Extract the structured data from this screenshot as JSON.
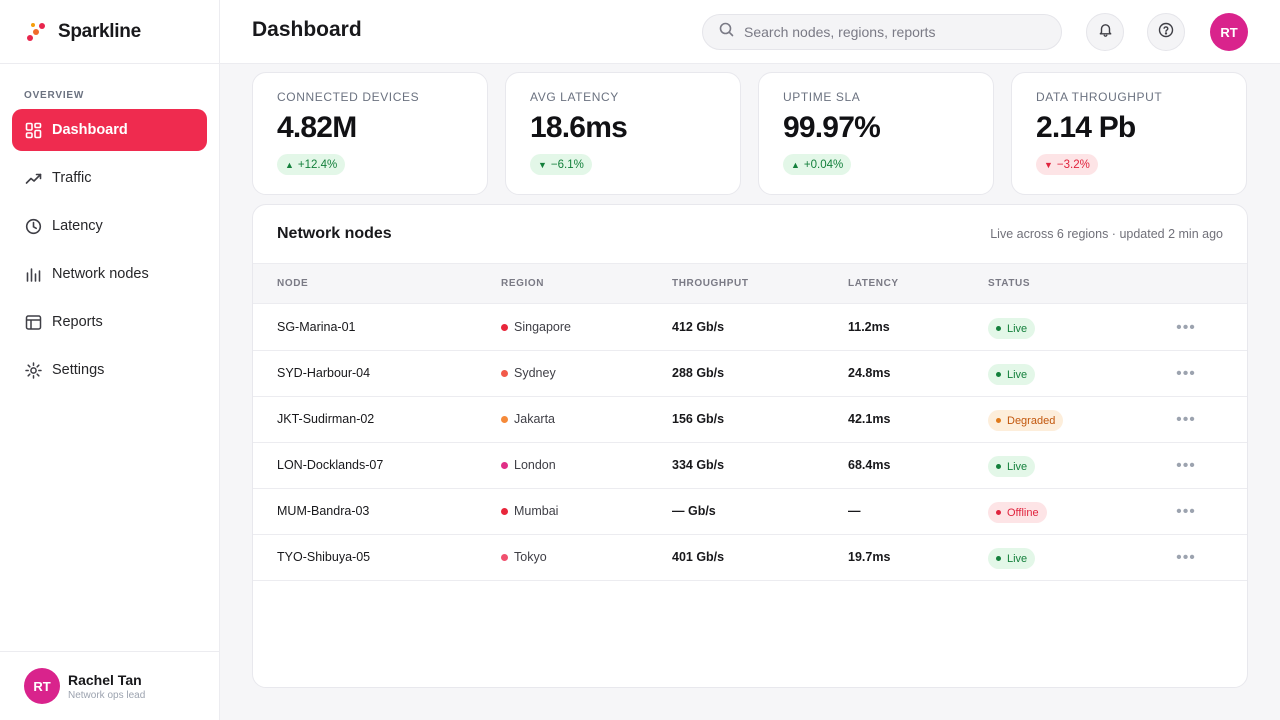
{
  "brand": {
    "name": "Sparkline"
  },
  "sidebar": {
    "section_label": "OVERVIEW",
    "items": [
      {
        "label": "Dashboard",
        "icon": "grid-icon",
        "active": true
      },
      {
        "label": "Traffic",
        "icon": "trend-line-icon"
      },
      {
        "label": "Latency",
        "icon": "clock-icon"
      },
      {
        "label": "Network nodes",
        "icon": "bars-icon"
      },
      {
        "label": "Reports",
        "icon": "table-icon"
      },
      {
        "label": "Settings",
        "icon": "gear-icon"
      }
    ],
    "user": {
      "initials": "RT",
      "name": "Rachel Tan",
      "role": "Network ops lead"
    }
  },
  "header": {
    "title": "Dashboard",
    "search_placeholder": "Search nodes, regions, reports",
    "avatar_initials": "RT"
  },
  "kpis": [
    {
      "label": "CONNECTED DEVICES",
      "value": "4.82M",
      "delta": "+12.4%",
      "direction": "up",
      "tone": "good"
    },
    {
      "label": "AVG LATENCY",
      "value": "18.6ms",
      "delta": "−6.1%",
      "direction": "down",
      "tone": "good"
    },
    {
      "label": "UPTIME SLA",
      "value": "99.97%",
      "delta": "+0.04%",
      "direction": "up",
      "tone": "good"
    },
    {
      "label": "DATA THROUGHPUT",
      "value": "2.14 Pb",
      "delta": "−3.2%",
      "direction": "down",
      "tone": "bad"
    }
  ],
  "nodes_table": {
    "title": "Network nodes",
    "subtitle": "Live across 6 regions · updated 2 min ago",
    "columns": [
      "NODE",
      "REGION",
      "THROUGHPUT",
      "LATENCY",
      "STATUS"
    ],
    "rows": [
      {
        "node": "SG-Marina-01",
        "region": "Singapore",
        "region_color": "#e8263b",
        "throughput": "412 Gb/s",
        "latency": "11.2ms",
        "status": "Live",
        "status_kind": "live"
      },
      {
        "node": "SYD-Harbour-04",
        "region": "Sydney",
        "region_color": "#f25a4a",
        "throughput": "288 Gb/s",
        "latency": "24.8ms",
        "status": "Live",
        "status_kind": "live"
      },
      {
        "node": "JKT-Sudirman-02",
        "region": "Jakarta",
        "region_color": "#f58a3a",
        "throughput": "156 Gb/s",
        "latency": "42.1ms",
        "status": "Degraded",
        "status_kind": "degraded"
      },
      {
        "node": "LON-Docklands-07",
        "region": "London",
        "region_color": "#e02f86",
        "throughput": "334 Gb/s",
        "latency": "68.4ms",
        "status": "Live",
        "status_kind": "live"
      },
      {
        "node": "MUM-Bandra-03",
        "region": "Mumbai",
        "region_color": "#e8263b",
        "throughput": "— Gb/s",
        "latency": "—",
        "status": "Offline",
        "status_kind": "offline"
      },
      {
        "node": "TYO-Shibuya-05",
        "region": "Tokyo",
        "region_color": "#f0506e",
        "throughput": "401 Gb/s",
        "latency": "19.7ms",
        "status": "Live",
        "status_kind": "live"
      }
    ]
  },
  "colors": {
    "accent": "#ef2b4f",
    "avatar": "#d9238c",
    "good": "#14803c",
    "bad": "#e0243e",
    "warning": "#c2570c"
  }
}
